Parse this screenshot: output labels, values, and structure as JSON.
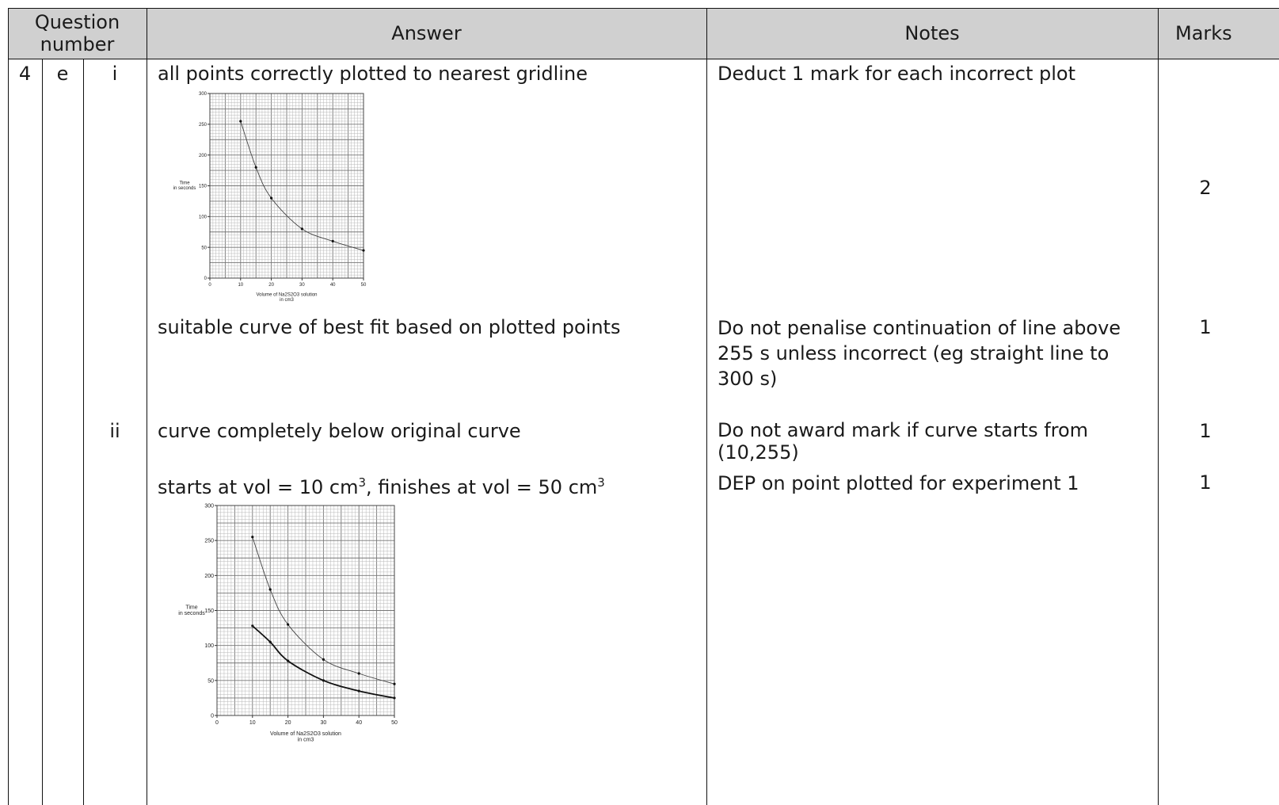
{
  "header": {
    "question_number": "Question number",
    "answer": "Answer",
    "notes": "Notes",
    "marks": "Marks"
  },
  "question": {
    "number": "4",
    "part": "e"
  },
  "rows": [
    {
      "subpart": "i",
      "answer": "all points correctly plotted to nearest gridline",
      "notes": "Deduct 1 mark for each incorrect plot",
      "marks": "2"
    },
    {
      "answer": "suitable curve of best fit based on plotted points",
      "notes": "Do not penalise continuation of line above 255 s unless incorrect (eg straight line to 300 s)",
      "marks": "1"
    },
    {
      "subpart": "ii",
      "answer": "curve completely below original curve",
      "notes": "Do not award mark if curve starts from (10,255)",
      "marks": "1"
    },
    {
      "answer_parts": {
        "a": "starts at vol = 10 cm",
        "sup1": "3",
        "b": ", finishes at vol = 50 cm",
        "sup2": "3"
      },
      "notes": "DEP on point plotted for experiment 1",
      "marks": "1"
    }
  ],
  "chart_data": [
    {
      "type": "scatter",
      "title": "",
      "xlabel": "Volume of Na2S2O3 solution in cm3",
      "ylabel": "Time in seconds",
      "xlim": [
        0,
        50
      ],
      "ylim": [
        0,
        300
      ],
      "x_ticks": [
        "0",
        "10",
        "20",
        "30",
        "40",
        "50"
      ],
      "y_ticks": [
        "0",
        "50",
        "100",
        "150",
        "200",
        "250",
        "300"
      ],
      "grid": true,
      "series": [
        {
          "x": [
            10,
            15,
            20,
            30,
            40,
            50
          ],
          "y": [
            255,
            180,
            130,
            80,
            60,
            45
          ],
          "curve": true
        }
      ]
    },
    {
      "type": "scatter",
      "title": "",
      "xlabel": "Volume of Na2S2O3 solution in cm3",
      "ylabel": "Time in seconds",
      "xlim": [
        0,
        50
      ],
      "ylim": [
        0,
        300
      ],
      "x_ticks": [
        "0",
        "10",
        "20",
        "30",
        "40",
        "50"
      ],
      "y_ticks": [
        "0",
        "50",
        "100",
        "150",
        "200",
        "250",
        "300"
      ],
      "grid": true,
      "series": [
        {
          "x": [
            10,
            15,
            20,
            30,
            40,
            50
          ],
          "y": [
            255,
            180,
            130,
            80,
            60,
            45
          ],
          "curve": true
        },
        {
          "x": [
            10,
            15,
            20,
            30,
            40,
            50
          ],
          "y": [
            128,
            105,
            78,
            50,
            35,
            25
          ],
          "curve": true,
          "bold": true
        }
      ]
    }
  ]
}
